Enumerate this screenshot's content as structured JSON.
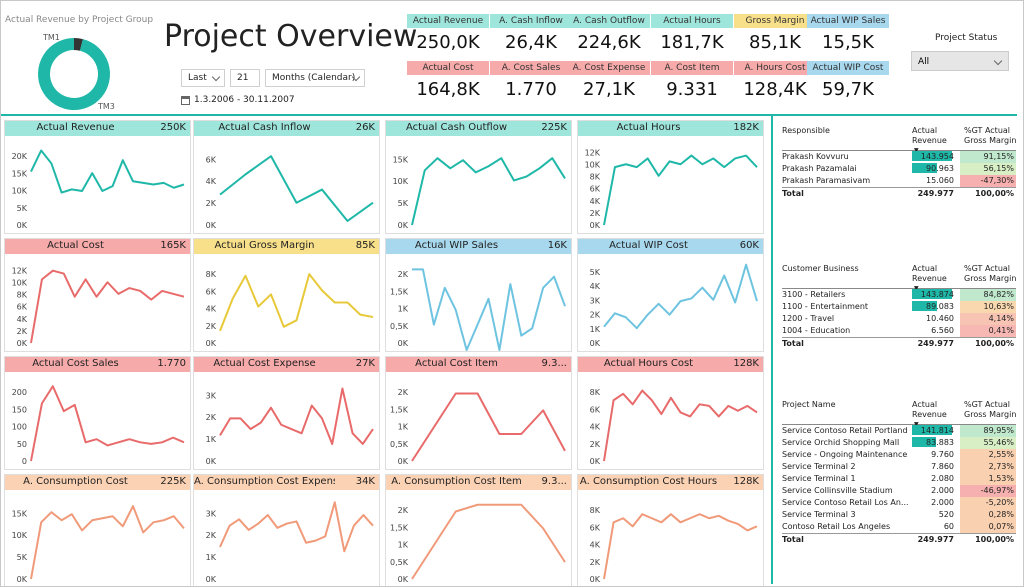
{
  "donut": {
    "title": "Actual Revenue by Project Group",
    "slices": [
      {
        "label": "TM1",
        "share": 0.04,
        "color": "#333333"
      },
      {
        "label": "TM3",
        "share": 0.96,
        "color": "#1fb8a8"
      }
    ]
  },
  "page_title": "Project Overview",
  "filters": {
    "period": "Last",
    "count": "21",
    "unit": "Months (Calendar)",
    "date_range": "1.3.2006 - 30.11.2007"
  },
  "kpis_top": [
    {
      "label": "Actual Revenue",
      "value": "250,0K",
      "color": "#9ee6dc"
    },
    {
      "label": "A. Cash Inflow",
      "value": "26,4K",
      "color": "#9ee6dc"
    },
    {
      "label": "A. Cash Outflow",
      "value": "224,6K",
      "color": "#9ee6dc"
    },
    {
      "label": "Actual Hours",
      "value": "181,7K",
      "color": "#9ee6dc"
    },
    {
      "label": "Gross Margin",
      "value": "85,1K",
      "color": "#f8e08a"
    },
    {
      "label": "Actual WIP Sales",
      "value": "15,5K",
      "color": "#a8d8ee"
    }
  ],
  "kpis_bottom": [
    {
      "label": "Actual Cost",
      "value": "164,8K",
      "color": "#f7aaaa"
    },
    {
      "label": "A. Cost Sales",
      "value": "1.770",
      "color": "#f7aaaa"
    },
    {
      "label": "A. Cost Expense",
      "value": "27,1K",
      "color": "#f7aaaa"
    },
    {
      "label": "A. Cost Item",
      "value": "9.331",
      "color": "#f7aaaa"
    },
    {
      "label": "A. Hours Cost",
      "value": "128,4K",
      "color": "#f7aaaa"
    },
    {
      "label": "Actual WIP Cost",
      "value": "59,7K",
      "color": "#a8d8ee"
    }
  ],
  "project_status": {
    "label": "Project Status",
    "value": "All"
  },
  "tiles": [
    {
      "title": "Actual Revenue",
      "value": "250K",
      "header_color": "#9ee6dc",
      "line_color": "#1fb8a8",
      "ticks": [
        "20K",
        "15K",
        "10K",
        "5K",
        "0K"
      ],
      "ymax": 25000,
      "values": [
        16500,
        23000,
        19000,
        10000,
        11000,
        10500,
        16000,
        10500,
        12000,
        20000,
        13500,
        13000,
        12500,
        13000,
        11500,
        12500
      ]
    },
    {
      "title": "Actual Cash Inflow",
      "value": "26K",
      "header_color": "#9ee6dc",
      "line_color": "#1fb8a8",
      "ticks": [
        "6K",
        "4K",
        "2K",
        "0K"
      ],
      "ymax": 8000,
      "values": [
        3000,
        5000,
        6800,
        2200,
        3500,
        400,
        2200
      ]
    },
    {
      "title": "Actual Cash Outflow",
      "value": "225K",
      "header_color": "#9ee6dc",
      "line_color": "#1fb8a8",
      "ticks": [
        "15K",
        "10K",
        "5K",
        "0K"
      ],
      "ymax": 20000,
      "values": [
        0,
        13500,
        16500,
        14000,
        16000,
        13000,
        14500,
        16500,
        11000,
        12000,
        14000,
        16500,
        11500
      ]
    },
    {
      "title": "Actual Hours",
      "value": "182K",
      "header_color": "#9ee6dc",
      "line_color": "#1fb8a8",
      "ticks": [
        "12K",
        "10K",
        "8K",
        "6K",
        "4K",
        "2K",
        "0K"
      ],
      "ymax": 14000,
      "values": [
        0,
        10000,
        10500,
        10000,
        11500,
        8500,
        11000,
        10500,
        12000,
        10500,
        11500,
        10000,
        11500,
        12000,
        10000
      ]
    },
    {
      "title": "Actual Cost",
      "value": "165K",
      "header_color": "#f7aaaa",
      "line_color": "#e86a6a",
      "ticks": [
        "12K",
        "10K",
        "8K",
        "6K",
        "4K",
        "2K",
        "0K"
      ],
      "ymax": 14000,
      "values": [
        0,
        11000,
        12500,
        12000,
        8000,
        11000,
        8000,
        10500,
        8500,
        9500,
        9000,
        7500,
        9000,
        8500,
        8000
      ]
    },
    {
      "title": "Actual Gross Margin",
      "value": "85K",
      "header_color": "#f8e08a",
      "line_color": "#e8c93a",
      "ticks": [
        "8K",
        "6K",
        "4K",
        "2K",
        "0K"
      ],
      "ymax": 10000,
      "values": [
        1500,
        5500,
        8300,
        4500,
        6000,
        2000,
        2800,
        8500,
        6500,
        5000,
        5000,
        3500,
        3200
      ]
    },
    {
      "title": "Actual WIP Sales",
      "value": "16K",
      "header_color": "#a8d8ee",
      "line_color": "#6ec4e0",
      "ticks": [
        "2K",
        "1,5K",
        "1K",
        "0,5K",
        "0K"
      ],
      "ymax": 2200,
      "values": [
        2000,
        2000,
        500,
        1500,
        900,
        -300,
        500,
        1200,
        -200,
        1600,
        200,
        400,
        1500,
        1800,
        1000
      ]
    },
    {
      "title": "Actual WIP Cost",
      "value": "60K",
      "header_color": "#a8d8ee",
      "line_color": "#6ec4e0",
      "ticks": [
        "5K",
        "4K",
        "3K",
        "2K",
        "1K",
        "0K"
      ],
      "ymax": 6000,
      "values": [
        1200,
        2200,
        1900,
        1100,
        2100,
        2900,
        2100,
        3100,
        3300,
        4100,
        3200,
        5000,
        3000,
        5800,
        3100
      ]
    },
    {
      "title": "Actual Cost Sales",
      "value": "1.770",
      "header_color": "#f7aaaa",
      "line_color": "#e86a6a",
      "ticks": [
        "200",
        "150",
        "100",
        "50",
        "0"
      ],
      "ymax": 260,
      "values": [
        0,
        185,
        240,
        160,
        180,
        60,
        70,
        50,
        60,
        70,
        60,
        55,
        60,
        75,
        60
      ]
    },
    {
      "title": "Actual Cost Expense",
      "value": "27K",
      "header_color": "#f7aaaa",
      "line_color": "#e86a6a",
      "ticks": [
        "3K",
        "2K",
        "1K",
        "0K"
      ],
      "ymax": 3800,
      "values": [
        1200,
        2000,
        2000,
        1500,
        1800,
        2500,
        1700,
        1500,
        1300,
        2600,
        2000,
        800,
        3400,
        1300,
        800,
        1500
      ]
    },
    {
      "title": "Actual Cost Item",
      "value": "9.3...",
      "header_color": "#f7aaaa",
      "line_color": "#e86a6a",
      "ticks": [
        "2K",
        "1,5K",
        "1K",
        "0,5K",
        "0K"
      ],
      "ymax": 2400,
      "values": [
        0,
        1000,
        2000,
        2000,
        800,
        800,
        1500,
        300
      ]
    },
    {
      "title": "Actual Hours Cost",
      "value": "128K",
      "header_color": "#f7aaaa",
      "line_color": "#e86a6a",
      "ticks": [
        "8K",
        "6K",
        "4K",
        "2K",
        "0K"
      ],
      "ymax": 10000,
      "values": [
        0,
        7500,
        8300,
        7000,
        8700,
        7500,
        5800,
        7800,
        6000,
        5500,
        7000,
        6800,
        5500,
        6800,
        6200,
        6800,
        6000
      ]
    },
    {
      "title": "A. Consumption Cost",
      "value": "225K",
      "header_color": "#fcd2b4",
      "line_color": "#f09a7a",
      "ticks": [
        "15K",
        "10K",
        "5K",
        "0K"
      ],
      "ymax": 20000,
      "values": [
        0,
        14000,
        16500,
        14500,
        16000,
        12000,
        14500,
        15000,
        15500,
        13000,
        18000,
        11500,
        14000,
        14500,
        15500,
        12500
      ]
    },
    {
      "title": "A. Consumption Cost Expense",
      "value": "34K",
      "header_color": "#fcd2b4",
      "line_color": "#f09a7a",
      "ticks": [
        "3K",
        "2K",
        "1K",
        "0K"
      ],
      "ymax": 3800,
      "values": [
        1500,
        2500,
        2800,
        2300,
        2600,
        3000,
        2400,
        2600,
        2700,
        1700,
        1800,
        2000,
        3600,
        1300,
        2500,
        3000,
        2500
      ]
    },
    {
      "title": "A. Consumption Cost Item",
      "value": "9.3...",
      "header_color": "#fcd2b4",
      "line_color": "#f09a7a",
      "ticks": [
        "2K",
        "1,5K",
        "1K",
        "0,5K",
        "0K"
      ],
      "ymax": 2400,
      "values": [
        0,
        1000,
        2000,
        2200,
        2200,
        2200,
        1500,
        500
      ]
    },
    {
      "title": "A. Consumption Cost Hours",
      "value": "128K",
      "header_color": "#fcd2b4",
      "line_color": "#f09a7a",
      "ticks": [
        "8K",
        "6K",
        "4K",
        "2K",
        "0K"
      ],
      "ymax": 10000,
      "values": [
        0,
        7000,
        7500,
        6500,
        8000,
        7500,
        7000,
        8000,
        7000,
        7500,
        8000,
        7500,
        7800,
        7200,
        6800,
        6000,
        6500
      ]
    }
  ],
  "tables": [
    {
      "headers": [
        "Responsible",
        "Actual Revenue",
        "%GT Actual Gross Margin"
      ],
      "rows": [
        {
          "name": "Prakash Kovvuru",
          "rev": "143.954",
          "bar": 1.0,
          "gm": "91,15%",
          "gm_color": "#bfe8cc"
        },
        {
          "name": "Prakash Pazamalai",
          "rev": "90.963",
          "bar": 0.63,
          "gm": "56,15%",
          "gm_color": "#d8efc6"
        },
        {
          "name": "Prakash Paramasivam",
          "rev": "15.060",
          "bar": 0.0,
          "gm": "-47,30%",
          "gm_color": "#f7b0b0"
        }
      ],
      "total": {
        "name": "Total",
        "rev": "249.977",
        "gm": "100,00%"
      }
    },
    {
      "headers": [
        "Customer Business",
        "Actual Revenue",
        "%GT Actual Gross Margin"
      ],
      "rows": [
        {
          "name": "3100 - Retailers",
          "rev": "143.874",
          "bar": 1.0,
          "gm": "84,82%",
          "gm_color": "#bfe8cc"
        },
        {
          "name": "1100 - Entertainment",
          "rev": "89.083",
          "bar": 0.62,
          "gm": "10,63%",
          "gm_color": "#f9d8b0"
        },
        {
          "name": "1200 - Travel",
          "rev": "10.460",
          "bar": 0.0,
          "gm": "4,14%",
          "gm_color": "#f7c4b4"
        },
        {
          "name": "1004 - Education",
          "rev": "6.560",
          "bar": 0.0,
          "gm": "0,41%",
          "gm_color": "#f7b8b4"
        }
      ],
      "total": {
        "name": "Total",
        "rev": "249.977",
        "gm": "100,00%"
      }
    },
    {
      "headers": [
        "Project Name",
        "Actual Revenue",
        "%GT Actual Gross Margin"
      ],
      "rows": [
        {
          "name": "Service Contoso Retail Portland",
          "rev": "141.814",
          "bar": 1.0,
          "gm": "89,95%",
          "gm_color": "#bfe8cc"
        },
        {
          "name": "Service Orchid Shopping Mall",
          "rev": "83.883",
          "bar": 0.59,
          "gm": "55,46%",
          "gm_color": "#d8efc6"
        },
        {
          "name": "Service - Ongoing Maintenance",
          "rev": "9.760",
          "bar": 0.0,
          "gm": "2,55%",
          "gm_color": "#f9d0b0"
        },
        {
          "name": "Service Terminal 2",
          "rev": "7.860",
          "bar": 0.0,
          "gm": "2,73%",
          "gm_color": "#f9d0b0"
        },
        {
          "name": "Service Terminal 1",
          "rev": "2.080",
          "bar": 0.0,
          "gm": "1,53%",
          "gm_color": "#f9d0b0"
        },
        {
          "name": "Service Collinsville Stadium",
          "rev": "2.000",
          "bar": 0.0,
          "gm": "-46,97%",
          "gm_color": "#f7b0b0"
        },
        {
          "name": "Service Contoso Retail Los An...",
          "rev": "2.000",
          "bar": 0.0,
          "gm": "-5,20%",
          "gm_color": "#f9d0b0"
        },
        {
          "name": "Service Terminal 3",
          "rev": "520",
          "bar": 0.0,
          "gm": "0,28%",
          "gm_color": "#f9d0b0"
        },
        {
          "name": "Contoso Retail Los Angeles",
          "rev": "60",
          "bar": 0.0,
          "gm": "0,07%",
          "gm_color": "#f9d0b0"
        }
      ],
      "total": {
        "name": "Total",
        "rev": "249.977",
        "gm": "100,00%"
      }
    }
  ]
}
